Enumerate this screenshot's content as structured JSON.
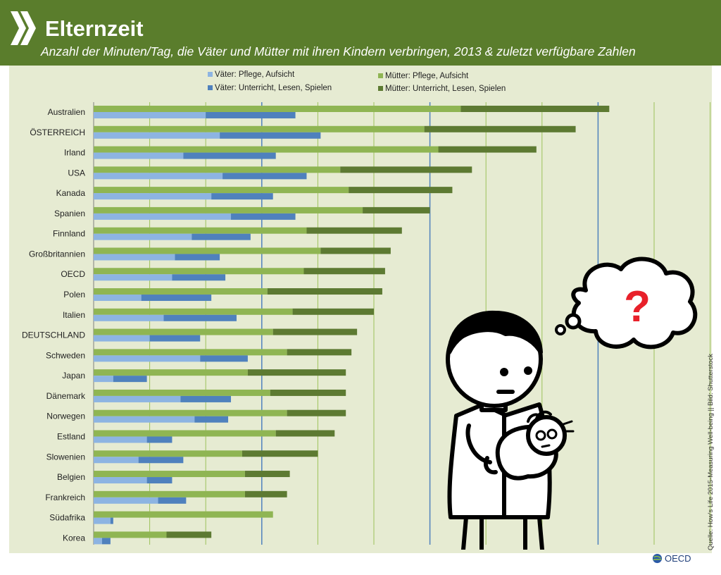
{
  "header": {
    "title": "Elternzeit",
    "subtitle": "Anzahl der Minuten/Tag, die Väter und Mütter mit ihren Kindern verbringen, 2013 & zuletzt verfügbare Zahlen"
  },
  "source": "Quelle: How's Life 2015-Measuring Well-being || Bild: Shutterstock",
  "logo_text": "OECD",
  "illustration": {
    "thought_symbol": "?",
    "icon": "father-holding-baby-icon"
  },
  "colors": {
    "header": "#5a7d2c",
    "plot_bg": "#e6ebd2",
    "fathers_care": "#8db4e2",
    "fathers_teach": "#4f81bd",
    "mothers_care": "#8fb553",
    "mothers_teach": "#5d7a32",
    "gridline_minor": "#9cc25a",
    "gridline_major": "#4f81bd",
    "question_mark": "#e8202a"
  },
  "chart_data": {
    "type": "bar",
    "orientation": "horizontal",
    "stacked": true,
    "categories": [
      "Australien",
      "ÖSTERREICH",
      "Irland",
      "USA",
      "Kanada",
      "Spanien",
      "Finnland",
      "Großbritannien",
      "OECD",
      "Polen",
      "Italien",
      "DEUTSCHLAND",
      "Schweden",
      "Japan",
      "Dänemark",
      "Norwegen",
      "Estland",
      "Slowenien",
      "Belgien",
      "Frankreich",
      "Südafrika",
      "Korea"
    ],
    "series": [
      {
        "name": "Väter: Pflege, Aufsicht",
        "group": "fathers",
        "values": [
          40,
          45,
          32,
          46,
          42,
          49,
          35,
          29,
          28,
          17,
          25,
          20,
          38,
          7,
          31,
          36,
          19,
          16,
          19,
          23,
          6,
          3
        ]
      },
      {
        "name": "Väter: Unterricht, Lesen, Spielen",
        "group": "fathers",
        "values": [
          32,
          36,
          33,
          30,
          22,
          23,
          21,
          16,
          19,
          25,
          26,
          18,
          17,
          12,
          18,
          12,
          9,
          16,
          9,
          10,
          1,
          3
        ]
      },
      {
        "name": "Mütter: Pflege, Aufsicht",
        "group": "mothers",
        "values": [
          131,
          118,
          123,
          88,
          91,
          96,
          76,
          81,
          75,
          62,
          71,
          64,
          69,
          55,
          63,
          69,
          65,
          53,
          54,
          54,
          64,
          26
        ]
      },
      {
        "name": "Mütter: Unterricht, Lesen, Spielen",
        "group": "mothers",
        "values": [
          53,
          54,
          35,
          47,
          37,
          24,
          34,
          25,
          29,
          41,
          29,
          30,
          23,
          35,
          27,
          21,
          21,
          27,
          16,
          15,
          0,
          16
        ]
      }
    ],
    "xlim": [
      0,
      220
    ],
    "xticks": [
      0,
      60,
      120,
      180
    ],
    "minor_gridlines": [
      20,
      40,
      80,
      100,
      140,
      160,
      200,
      220
    ],
    "grid": true,
    "legend_position": "top"
  }
}
